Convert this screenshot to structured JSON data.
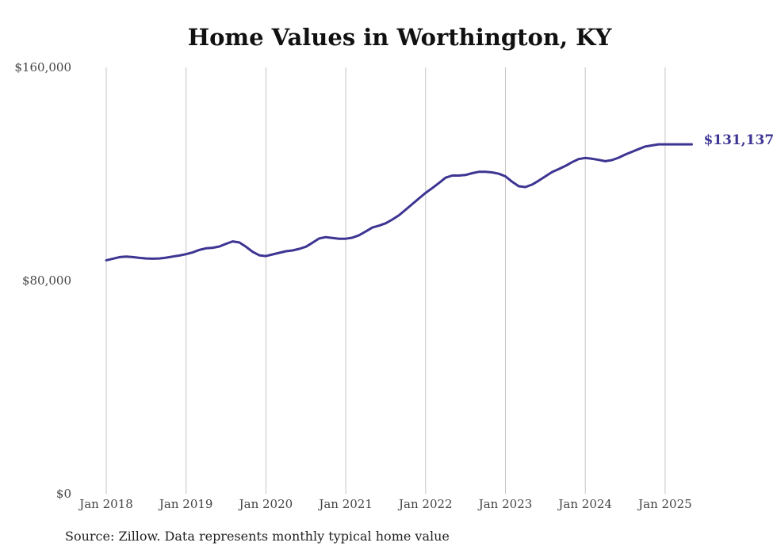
{
  "chart_data": {
    "type": "line",
    "title": "Home Values in Worthington, KY",
    "source": "Source: Zillow. Data represents monthly typical home value",
    "xlabel": "",
    "ylabel": "",
    "ylim": [
      0,
      160000
    ],
    "y_ticks": [
      {
        "value": 0,
        "label": "$0"
      },
      {
        "value": 80000,
        "label": "$80,000"
      },
      {
        "value": 160000,
        "label": "$160,000"
      }
    ],
    "x_ticks": [
      {
        "value": "2018-01",
        "label": "Jan 2018"
      },
      {
        "value": "2019-01",
        "label": "Jan 2019"
      },
      {
        "value": "2020-01",
        "label": "Jan 2020"
      },
      {
        "value": "2021-01",
        "label": "Jan 2021"
      },
      {
        "value": "2022-01",
        "label": "Jan 2022"
      },
      {
        "value": "2023-01",
        "label": "Jan 2023"
      },
      {
        "value": "2024-01",
        "label": "Jan 2024"
      },
      {
        "value": "2025-01",
        "label": "Jan 2025"
      }
    ],
    "grid": "vertical",
    "line_color": "#3d3592",
    "end_label": "$131,137",
    "series": [
      {
        "x": [
          "2018-01",
          "2018-02",
          "2018-03",
          "2018-04",
          "2018-05",
          "2018-06",
          "2018-07",
          "2018-08",
          "2018-09",
          "2018-10",
          "2018-11",
          "2018-12",
          "2019-01",
          "2019-02",
          "2019-03",
          "2019-04",
          "2019-05",
          "2019-06",
          "2019-07",
          "2019-08",
          "2019-09",
          "2019-10",
          "2019-11",
          "2019-12",
          "2020-01",
          "2020-02",
          "2020-03",
          "2020-04",
          "2020-05",
          "2020-06",
          "2020-07",
          "2020-08",
          "2020-09",
          "2020-10",
          "2020-11",
          "2020-12",
          "2021-01",
          "2021-02",
          "2021-03",
          "2021-04",
          "2021-05",
          "2021-06",
          "2021-07",
          "2021-08",
          "2021-09",
          "2021-10",
          "2021-11",
          "2021-12",
          "2022-01",
          "2022-02",
          "2022-03",
          "2022-04",
          "2022-05",
          "2022-06",
          "2022-07",
          "2022-08",
          "2022-09",
          "2022-10",
          "2022-11",
          "2022-12",
          "2023-01",
          "2023-02",
          "2023-03",
          "2023-04",
          "2023-05",
          "2023-06",
          "2023-07",
          "2023-08",
          "2023-09",
          "2023-10",
          "2023-11",
          "2023-12",
          "2024-01",
          "2024-02",
          "2024-03",
          "2024-04",
          "2024-05",
          "2024-06",
          "2024-07",
          "2024-08",
          "2024-09",
          "2024-10",
          "2024-11",
          "2024-12",
          "2025-01",
          "2025-02",
          "2025-03",
          "2025-04",
          "2025-05"
        ],
        "values": [
          87600,
          88200,
          88800,
          89000,
          88800,
          88500,
          88300,
          88200,
          88300,
          88600,
          89000,
          89400,
          89900,
          90600,
          91500,
          92100,
          92300,
          92800,
          93800,
          94700,
          94300,
          92700,
          90800,
          89500,
          89200,
          89800,
          90400,
          91000,
          91300,
          91900,
          92700,
          94200,
          95800,
          96300,
          96000,
          95700,
          95700,
          96100,
          97000,
          98400,
          99900,
          100600,
          101500,
          102900,
          104500,
          106600,
          108700,
          110800,
          112900,
          114700,
          116600,
          118600,
          119400,
          119400,
          119600,
          120300,
          120800,
          120800,
          120600,
          120100,
          119100,
          117100,
          115400,
          115100,
          116000,
          117500,
          119100,
          120700,
          121800,
          123000,
          124400,
          125600,
          126000,
          125700,
          125300,
          124800,
          125200,
          126100,
          127300,
          128300,
          129300,
          130300,
          130700,
          131137,
          131137,
          131137,
          131137,
          131137,
          131137
        ]
      }
    ]
  }
}
